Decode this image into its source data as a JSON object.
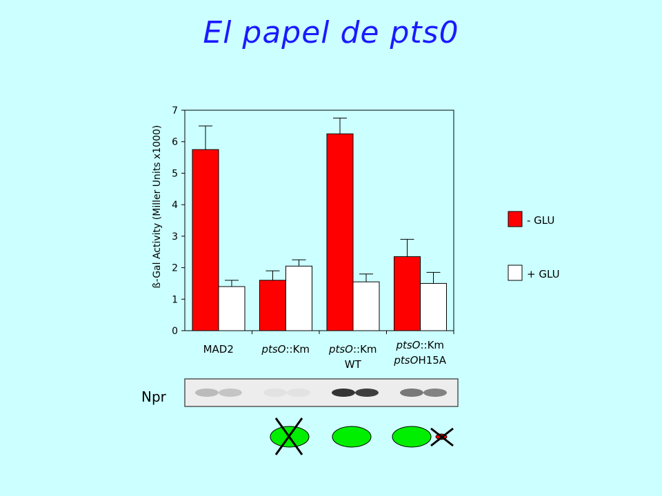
{
  "title": "El papel de pts0",
  "colors": {
    "minus_glu": "#ff0000",
    "plus_glu": "#ffffff",
    "background": "#ccffff",
    "title": "#1a1aff",
    "protein": "#00ee00"
  },
  "chart_data": {
    "type": "bar",
    "ylabel": "ß-Gal Activity (Miller Units x1000)",
    "ylim": [
      0,
      7
    ],
    "yticks": [
      "0",
      "1",
      "2",
      "3",
      "4",
      "5",
      "6",
      "7"
    ],
    "categories": [
      {
        "line1": [
          {
            "t": "MAD2",
            "i": false
          }
        ],
        "line2": []
      },
      {
        "line1": [
          {
            "t": "ptsO",
            "i": true
          },
          {
            "t": "::Km",
            "i": false
          }
        ],
        "line2": []
      },
      {
        "line1": [
          {
            "t": "ptsO",
            "i": true
          },
          {
            "t": "::Km",
            "i": false
          }
        ],
        "line2": [
          {
            "t": "WT",
            "i": false
          }
        ]
      },
      {
        "line1": [
          {
            "t": "ptsO",
            "i": true
          },
          {
            "t": "::Km",
            "i": false
          }
        ],
        "line2": [
          {
            "t": "ptsO",
            "i": true
          },
          {
            "t": "H15A",
            "i": false
          }
        ]
      }
    ],
    "series": [
      {
        "name": "- GLU",
        "values": [
          5.75,
          1.6,
          6.25,
          2.35
        ],
        "errors": [
          0.75,
          0.3,
          0.5,
          0.55
        ]
      },
      {
        "name": "+ GLU",
        "values": [
          1.4,
          2.05,
          1.55,
          1.5
        ],
        "errors": [
          0.2,
          0.2,
          0.25,
          0.35
        ]
      }
    ],
    "legend": [
      {
        "label": "- GLU"
      },
      {
        "label": "+ GLU"
      }
    ],
    "legend_position": "right"
  },
  "blot": {
    "label": "Npr",
    "band_intensity": [
      [
        0.25,
        0.2
      ],
      [
        0.05,
        0.05
      ],
      [
        0.95,
        0.9
      ],
      [
        0.6,
        0.55
      ]
    ]
  },
  "proteins": [
    {
      "crossed": true,
      "tag": false,
      "tag_crossed": false
    },
    {
      "crossed": false,
      "tag": false,
      "tag_crossed": false
    },
    {
      "crossed": false,
      "tag": true,
      "tag_crossed": true
    }
  ]
}
